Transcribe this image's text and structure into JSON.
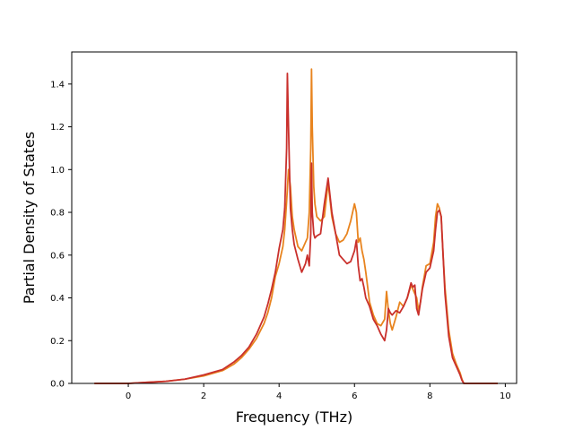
{
  "chart_data": {
    "type": "line",
    "title": "",
    "xlabel": "Frequency (THz)",
    "ylabel": "Partial Density of States",
    "xlim": [
      -1.5,
      10.3
    ],
    "ylim": [
      0.0,
      1.55
    ],
    "xticks": [
      0,
      2,
      4,
      6,
      8,
      10
    ],
    "yticks": [
      0.0,
      0.2,
      0.4,
      0.6,
      0.8,
      1.0,
      1.2,
      1.4
    ],
    "xtick_labels": [
      "0",
      "2",
      "4",
      "6",
      "8",
      "10"
    ],
    "ytick_labels": [
      "0.0",
      "0.2",
      "0.4",
      "0.6",
      "0.8",
      "1.0",
      "1.2",
      "1.4"
    ],
    "grid": false,
    "legend": "none",
    "series": [
      {
        "color": "#e8841f",
        "x": [
          -0.9,
          0.0,
          0.5,
          1.0,
          1.5,
          2.0,
          2.5,
          2.8,
          3.0,
          3.2,
          3.4,
          3.6,
          3.7,
          3.8,
          3.9,
          4.0,
          4.1,
          4.15,
          4.2,
          4.25,
          4.3,
          4.35,
          4.4,
          4.5,
          4.6,
          4.7,
          4.75,
          4.8,
          4.84,
          4.86,
          4.88,
          4.92,
          4.95,
          5.0,
          5.1,
          5.2,
          5.3,
          5.4,
          5.5,
          5.6,
          5.7,
          5.8,
          5.9,
          6.0,
          6.05,
          6.1,
          6.15,
          6.2,
          6.25,
          6.3,
          6.4,
          6.5,
          6.6,
          6.7,
          6.8,
          6.85,
          6.9,
          6.95,
          7.0,
          7.1,
          7.2,
          7.3,
          7.4,
          7.5,
          7.55,
          7.6,
          7.65,
          7.7,
          7.75,
          7.8,
          7.9,
          8.0,
          8.1,
          8.15,
          8.2,
          8.25,
          8.3,
          8.35,
          8.4,
          8.5,
          8.6,
          8.7,
          8.8,
          8.85,
          8.9,
          9.0,
          9.8
        ],
        "y": [
          0.0,
          0.0,
          0.005,
          0.01,
          0.02,
          0.035,
          0.06,
          0.09,
          0.12,
          0.16,
          0.21,
          0.28,
          0.33,
          0.4,
          0.5,
          0.56,
          0.64,
          0.72,
          0.85,
          1.0,
          0.92,
          0.78,
          0.72,
          0.64,
          0.62,
          0.66,
          0.68,
          0.8,
          1.1,
          1.47,
          1.2,
          0.92,
          0.84,
          0.78,
          0.76,
          0.78,
          0.94,
          0.78,
          0.7,
          0.66,
          0.67,
          0.7,
          0.76,
          0.84,
          0.8,
          0.66,
          0.68,
          0.62,
          0.58,
          0.52,
          0.38,
          0.32,
          0.28,
          0.27,
          0.3,
          0.43,
          0.34,
          0.28,
          0.25,
          0.31,
          0.38,
          0.36,
          0.4,
          0.46,
          0.44,
          0.42,
          0.4,
          0.34,
          0.38,
          0.45,
          0.55,
          0.56,
          0.66,
          0.78,
          0.84,
          0.82,
          0.78,
          0.6,
          0.45,
          0.25,
          0.14,
          0.09,
          0.05,
          0.02,
          0.0,
          0.0,
          0.0
        ]
      },
      {
        "color": "#c9302c",
        "x": [
          -0.9,
          0.0,
          0.5,
          1.0,
          1.5,
          2.0,
          2.5,
          2.8,
          3.0,
          3.2,
          3.4,
          3.6,
          3.7,
          3.8,
          3.9,
          4.0,
          4.1,
          4.15,
          4.2,
          4.22,
          4.25,
          4.3,
          4.35,
          4.4,
          4.5,
          4.6,
          4.7,
          4.75,
          4.8,
          4.84,
          4.86,
          4.88,
          4.92,
          4.95,
          5.0,
          5.1,
          5.2,
          5.3,
          5.4,
          5.5,
          5.6,
          5.7,
          5.8,
          5.9,
          6.0,
          6.05,
          6.1,
          6.15,
          6.2,
          6.25,
          6.3,
          6.4,
          6.5,
          6.6,
          6.7,
          6.8,
          6.85,
          6.9,
          6.95,
          7.0,
          7.1,
          7.2,
          7.3,
          7.4,
          7.5,
          7.55,
          7.6,
          7.65,
          7.7,
          7.75,
          7.8,
          7.9,
          8.0,
          8.1,
          8.15,
          8.2,
          8.25,
          8.3,
          8.35,
          8.4,
          8.5,
          8.6,
          8.7,
          8.8,
          8.85,
          8.9,
          9.0,
          9.8
        ],
        "y": [
          0.0,
          0.0,
          0.005,
          0.01,
          0.02,
          0.04,
          0.065,
          0.1,
          0.13,
          0.17,
          0.23,
          0.31,
          0.37,
          0.44,
          0.52,
          0.63,
          0.72,
          0.82,
          1.1,
          1.45,
          1.2,
          0.82,
          0.72,
          0.65,
          0.58,
          0.52,
          0.56,
          0.6,
          0.55,
          0.7,
          1.03,
          0.8,
          0.7,
          0.68,
          0.69,
          0.7,
          0.84,
          0.96,
          0.8,
          0.7,
          0.6,
          0.58,
          0.56,
          0.57,
          0.62,
          0.67,
          0.55,
          0.48,
          0.49,
          0.45,
          0.4,
          0.36,
          0.3,
          0.27,
          0.23,
          0.2,
          0.25,
          0.35,
          0.33,
          0.32,
          0.34,
          0.33,
          0.36,
          0.4,
          0.47,
          0.45,
          0.46,
          0.35,
          0.32,
          0.38,
          0.44,
          0.52,
          0.54,
          0.62,
          0.72,
          0.8,
          0.81,
          0.78,
          0.6,
          0.42,
          0.22,
          0.12,
          0.08,
          0.04,
          0.015,
          0.0,
          0.0,
          0.0
        ]
      }
    ]
  }
}
